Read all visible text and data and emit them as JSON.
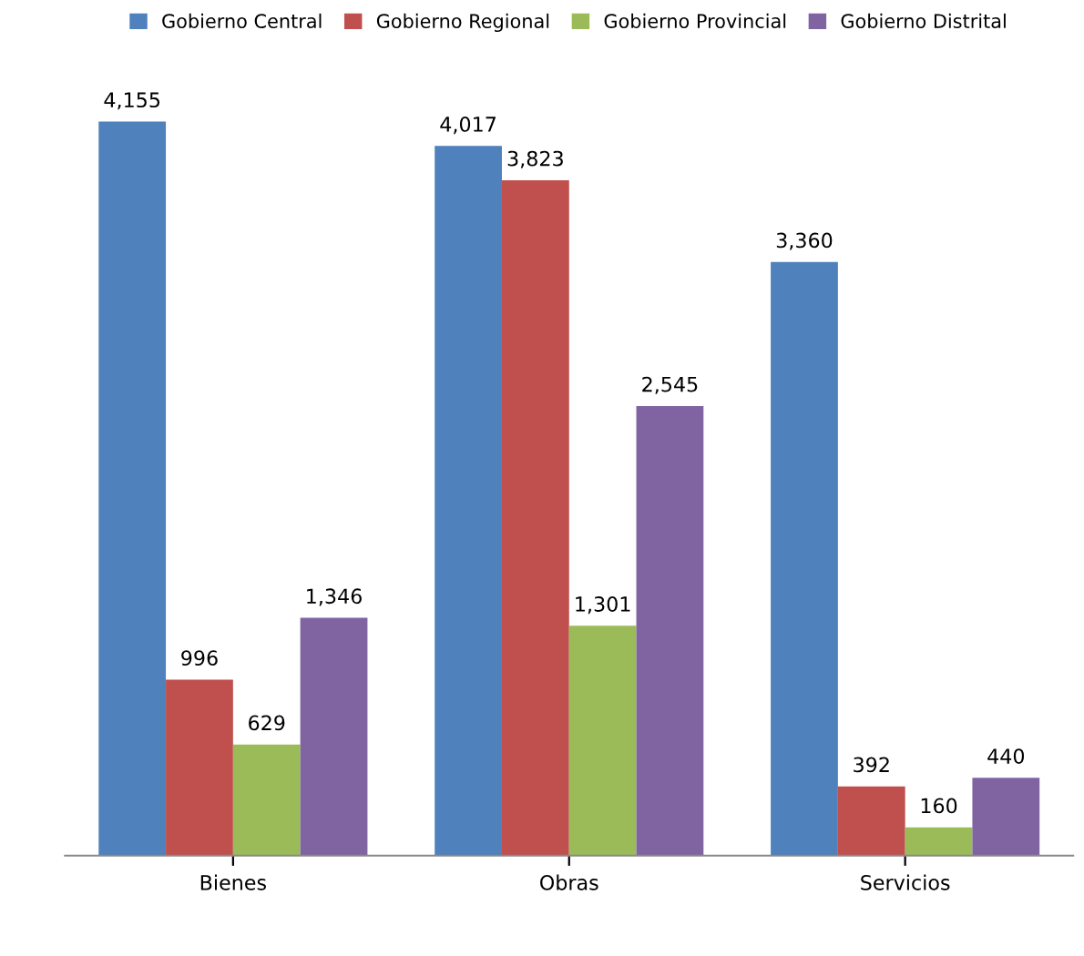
{
  "chart_data": {
    "type": "bar",
    "categories": [
      "Bienes",
      "Obras",
      "Servicios"
    ],
    "series": [
      {
        "name": "Gobierno Central",
        "color": "#4f81bd",
        "values": [
          4155,
          4017,
          3360
        ],
        "value_labels": [
          "4,155",
          "4,017",
          "3,360"
        ]
      },
      {
        "name": "Gobierno Regional",
        "color": "#c0504d",
        "values": [
          996,
          3823,
          392
        ],
        "value_labels": [
          "996",
          "3,823",
          "392"
        ]
      },
      {
        "name": "Gobierno Provincial",
        "color": "#9bbb59",
        "values": [
          629,
          1301,
          160
        ],
        "value_labels": [
          "629",
          "1,301",
          "160"
        ]
      },
      {
        "name": "Gobierno Distrital",
        "color": "#8064a2",
        "values": [
          1346,
          2545,
          440
        ],
        "value_labels": [
          "1,346",
          "2,545",
          "440"
        ]
      }
    ],
    "legend": "top",
    "tick_labels": "x",
    "grid": false
  }
}
